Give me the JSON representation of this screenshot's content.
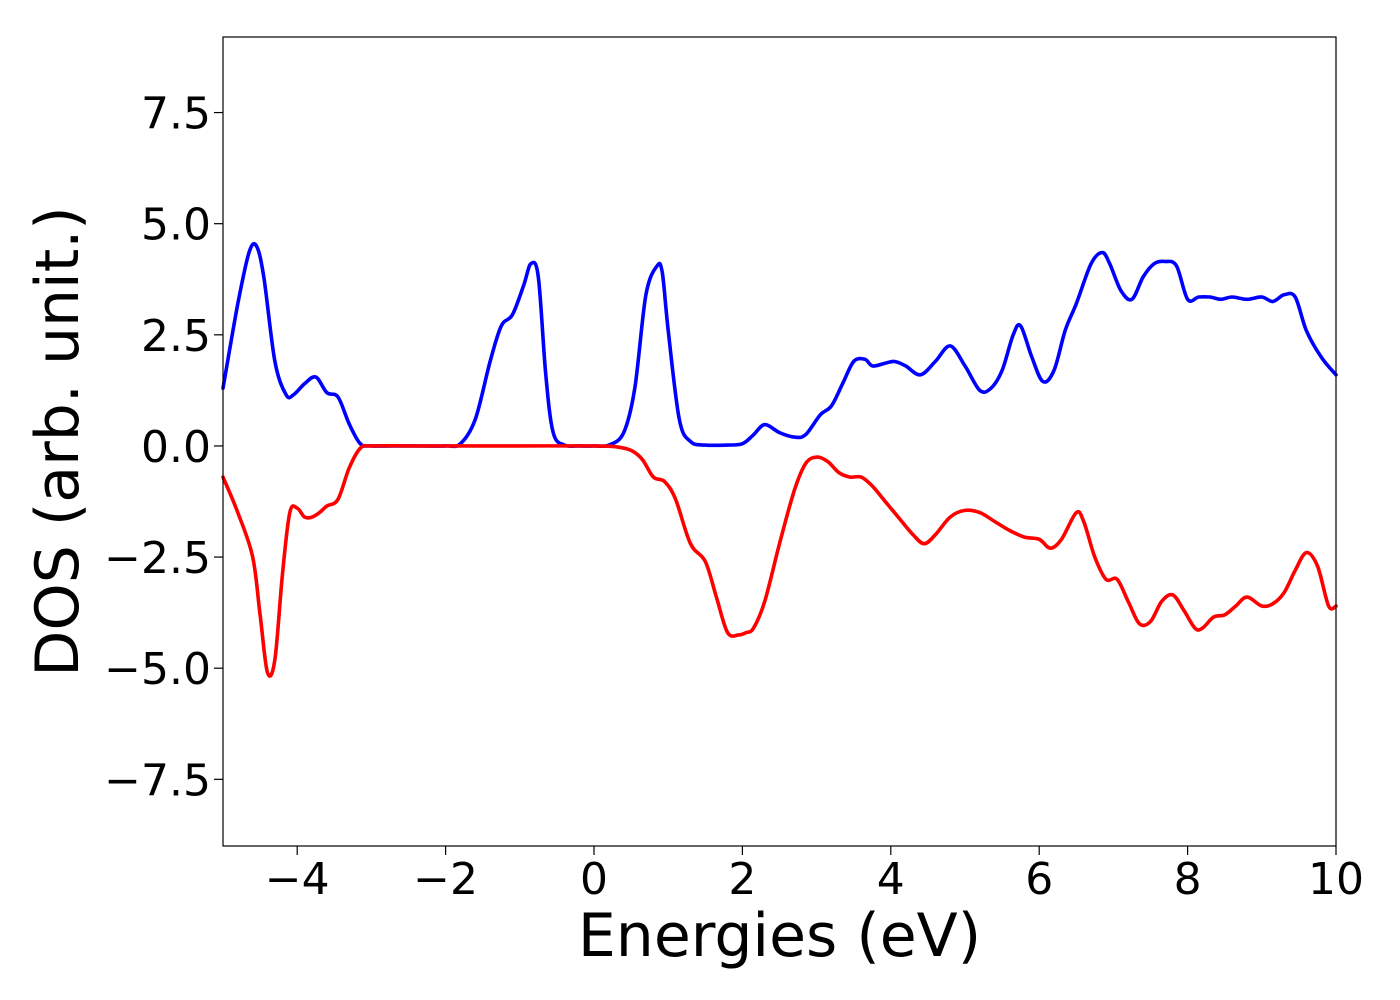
{
  "chart_data": {
    "type": "line",
    "title": "",
    "xlabel": "Energies (eV)",
    "ylabel": "DOS (arb. unit.)",
    "xlim": [
      -5,
      10
    ],
    "ylim": [
      -9,
      9.2
    ],
    "grid": false,
    "legend": "none",
    "xticks": [
      -4,
      -2,
      0,
      2,
      4,
      6,
      8,
      10
    ],
    "xtick_labels": [
      "−4",
      "−2",
      "0",
      "2",
      "4",
      "6",
      "8",
      "10"
    ],
    "yticks": [
      7.5,
      5.0,
      2.5,
      0.0,
      -2.5,
      -5.0,
      -7.5
    ],
    "ytick_labels": [
      "7.5",
      "5.0",
      "2.5",
      "0.0",
      "−2.5",
      "−5.0",
      "−7.5"
    ],
    "series": [
      {
        "color": "#0000ff",
        "x": [
          -5.0,
          -4.8,
          -4.65,
          -4.55,
          -4.45,
          -4.3,
          -4.15,
          -4.05,
          -3.9,
          -3.75,
          -3.6,
          -3.45,
          -3.3,
          -3.15,
          -3.0,
          -2.5,
          -2.0,
          -1.8,
          -1.6,
          -1.4,
          -1.25,
          -1.1,
          -0.95,
          -0.85,
          -0.75,
          -0.65,
          -0.55,
          -0.4,
          -0.2,
          0.0,
          0.2,
          0.4,
          0.55,
          0.7,
          0.85,
          0.92,
          1.0,
          1.15,
          1.3,
          1.5,
          1.8,
          2.0,
          2.15,
          2.3,
          2.5,
          2.7,
          2.85,
          3.05,
          3.2,
          3.35,
          3.5,
          3.65,
          3.75,
          3.9,
          4.05,
          4.2,
          4.4,
          4.6,
          4.8,
          5.0,
          5.2,
          5.35,
          5.5,
          5.65,
          5.75,
          5.9,
          6.05,
          6.2,
          6.35,
          6.5,
          6.7,
          6.85,
          6.95,
          7.1,
          7.25,
          7.4,
          7.55,
          7.7,
          7.85,
          8.0,
          8.15,
          8.3,
          8.45,
          8.6,
          8.8,
          9.0,
          9.15,
          9.3,
          9.45,
          9.6,
          9.8,
          10.0
        ],
        "y": [
          1.3,
          3.2,
          4.35,
          4.5,
          3.8,
          1.9,
          1.15,
          1.15,
          1.4,
          1.55,
          1.2,
          1.1,
          0.5,
          0.05,
          0.0,
          0.0,
          0.0,
          0.05,
          0.6,
          1.9,
          2.7,
          2.95,
          3.6,
          4.1,
          3.8,
          1.6,
          0.3,
          0.02,
          0.0,
          0.0,
          0.02,
          0.3,
          1.3,
          3.4,
          4.05,
          3.9,
          2.6,
          0.6,
          0.1,
          0.02,
          0.02,
          0.05,
          0.25,
          0.48,
          0.3,
          0.2,
          0.25,
          0.7,
          0.9,
          1.4,
          1.9,
          1.95,
          1.8,
          1.85,
          1.9,
          1.8,
          1.6,
          1.9,
          2.25,
          1.8,
          1.25,
          1.3,
          1.7,
          2.5,
          2.7,
          2.0,
          1.45,
          1.7,
          2.6,
          3.2,
          4.1,
          4.35,
          4.1,
          3.5,
          3.3,
          3.8,
          4.1,
          4.15,
          4.05,
          3.3,
          3.35,
          3.35,
          3.3,
          3.35,
          3.3,
          3.35,
          3.25,
          3.4,
          3.35,
          2.6,
          2.0,
          1.6
        ]
      },
      {
        "color": "#ff0000",
        "x": [
          -5.0,
          -4.8,
          -4.6,
          -4.5,
          -4.4,
          -4.3,
          -4.2,
          -4.1,
          -4.0,
          -3.9,
          -3.8,
          -3.7,
          -3.6,
          -3.45,
          -3.3,
          -3.15,
          -3.0,
          -2.5,
          -2.0,
          -1.0,
          0.0,
          0.3,
          0.5,
          0.65,
          0.8,
          0.95,
          1.1,
          1.3,
          1.5,
          1.65,
          1.8,
          1.95,
          2.05,
          2.15,
          2.3,
          2.5,
          2.7,
          2.85,
          3.0,
          3.15,
          3.3,
          3.45,
          3.6,
          3.75,
          3.9,
          4.1,
          4.3,
          4.45,
          4.6,
          4.8,
          5.0,
          5.2,
          5.4,
          5.6,
          5.8,
          6.0,
          6.15,
          6.3,
          6.5,
          6.6,
          6.75,
          6.9,
          7.05,
          7.2,
          7.35,
          7.5,
          7.65,
          7.8,
          7.95,
          8.1,
          8.2,
          8.35,
          8.5,
          8.65,
          8.8,
          9.0,
          9.15,
          9.3,
          9.45,
          9.6,
          9.75,
          9.9,
          10.0
        ],
        "y": [
          -0.7,
          -1.5,
          -2.5,
          -3.8,
          -5.1,
          -4.8,
          -2.9,
          -1.5,
          -1.4,
          -1.6,
          -1.6,
          -1.5,
          -1.35,
          -1.2,
          -0.5,
          -0.05,
          0.0,
          0.0,
          0.0,
          0.0,
          0.0,
          -0.02,
          -0.1,
          -0.3,
          -0.7,
          -0.8,
          -1.2,
          -2.2,
          -2.6,
          -3.4,
          -4.2,
          -4.25,
          -4.2,
          -4.1,
          -3.5,
          -2.2,
          -1.0,
          -0.4,
          -0.25,
          -0.35,
          -0.6,
          -0.7,
          -0.7,
          -0.9,
          -1.2,
          -1.6,
          -2.0,
          -2.2,
          -2.0,
          -1.6,
          -1.45,
          -1.5,
          -1.7,
          -1.9,
          -2.05,
          -2.1,
          -2.3,
          -2.1,
          -1.5,
          -1.7,
          -2.5,
          -3.0,
          -3.0,
          -3.5,
          -4.0,
          -3.95,
          -3.5,
          -3.35,
          -3.7,
          -4.1,
          -4.1,
          -3.85,
          -3.8,
          -3.6,
          -3.4,
          -3.6,
          -3.55,
          -3.3,
          -2.8,
          -2.4,
          -2.7,
          -3.6,
          -3.6
        ]
      }
    ]
  }
}
